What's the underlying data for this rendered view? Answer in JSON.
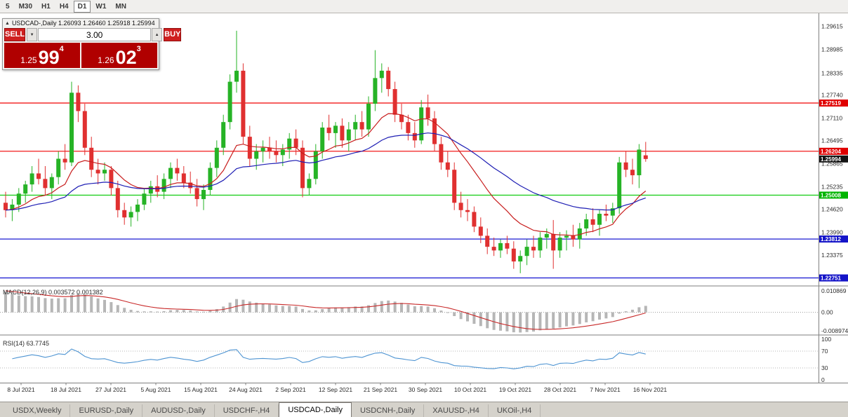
{
  "toolbar": {
    "timeframes": [
      "5",
      "M30",
      "H1",
      "H4",
      "D1",
      "W1",
      "MN"
    ],
    "active": "D1"
  },
  "trade_panel": {
    "collapse_icon": "▲",
    "quote_line": "USDCAD-,Daily 1.26093 1.26460 1.25918 1.25994",
    "sell_label": "SELL",
    "buy_label": "BUY",
    "volume": "3.00",
    "vol_down_icon": "▼",
    "vol_up_icon": "▲",
    "sell_price": {
      "figure": "1.25",
      "pips": "99",
      "pipette": "4"
    },
    "buy_price": {
      "figure": "1.26",
      "pips": "02",
      "pipette": "3"
    }
  },
  "colors": {
    "bull": "#26b326",
    "bear": "#e03030",
    "hline_red": "#f00000",
    "hline_green": "#00c800",
    "hline_blue": "#0000cd",
    "badge_red": "#e00000",
    "badge_green": "#00b400",
    "badge_blue": "#1414c8",
    "badge_current": "#141414",
    "ma_fast": "#c81e1e",
    "ma_slow": "#1e1eb4",
    "macd_hist": "#b6b6b6",
    "macd_signal": "#c82828",
    "rsi_line": "#4e94d2",
    "axis_text": "#2b2b2b",
    "separator": "#7f7f7f"
  },
  "chart_data": {
    "type": "candlestick",
    "title": "USDCAD-,Daily",
    "price_range": [
      1.2259,
      1.2985
    ],
    "current_price": 1.25994,
    "y_axis_labels": [
      1.29615,
      1.28985,
      1.28335,
      1.2774,
      1.2711,
      1.26495,
      1.25865,
      1.25235,
      1.2462,
      1.2399,
      1.23375
    ],
    "h_lines": [
      {
        "price": 1.27519,
        "color": "red"
      },
      {
        "price": 1.26204,
        "color": "red"
      },
      {
        "price": 1.25008,
        "color": "green"
      },
      {
        "price": 1.23812,
        "color": "blue"
      },
      {
        "price": 1.22751,
        "color": "blue"
      }
    ],
    "x_labels": [
      "8 Jul 2021",
      "18 Jul 2021",
      "27 Jul 2021",
      "5 Aug 2021",
      "15 Aug 2021",
      "24 Aug 2021",
      "2 Sep 2021",
      "12 Sep 2021",
      "21 Sep 2021",
      "30 Sep 2021",
      "10 Oct 2021",
      "19 Oct 2021",
      "28 Oct 2021",
      "7 Nov 2021",
      "16 Nov 2021"
    ],
    "moving_averages": [
      {
        "type": "ema",
        "period": 13,
        "color_key": "ma_fast"
      },
      {
        "type": "ema",
        "period": 34,
        "color_key": "ma_slow"
      }
    ],
    "indicators": {
      "macd": {
        "label": "MACD(12,26,9)",
        "values_text": "0.003572 0.001382",
        "params": [
          12,
          26,
          9
        ],
        "axis": [
          {
            "v": 0.010869,
            "label": "0.010869"
          },
          {
            "v": 0,
            "label": "0.00"
          },
          {
            "v": -0.008974,
            "label": "-0.008974"
          }
        ],
        "range": [
          -0.008974,
          0.010869
        ]
      },
      "rsi": {
        "label": "RSI(14)",
        "value_text": "63.7745",
        "period": 14,
        "axis": [
          100,
          70,
          30,
          0
        ],
        "levels": [
          70,
          30
        ]
      }
    },
    "ohlc": [
      [
        1.248,
        1.251,
        1.244,
        1.246
      ],
      [
        1.246,
        1.249,
        1.243,
        1.2475
      ],
      [
        1.2475,
        1.252,
        1.2455,
        1.2505
      ],
      [
        1.2505,
        1.254,
        1.248,
        1.253
      ],
      [
        1.253,
        1.258,
        1.251,
        1.256
      ],
      [
        1.256,
        1.26,
        1.253,
        1.2545
      ],
      [
        1.2545,
        1.258,
        1.25,
        1.252
      ],
      [
        1.252,
        1.256,
        1.249,
        1.255
      ],
      [
        1.255,
        1.262,
        1.253,
        1.26
      ],
      [
        1.26,
        1.264,
        1.257,
        1.259
      ],
      [
        1.259,
        1.281,
        1.258,
        1.278
      ],
      [
        1.278,
        1.28,
        1.27,
        1.273
      ],
      [
        1.273,
        1.275,
        1.261,
        1.263
      ],
      [
        1.263,
        1.266,
        1.255,
        1.257
      ],
      [
        1.257,
        1.26,
        1.253,
        1.256
      ],
      [
        1.256,
        1.259,
        1.254,
        1.257
      ],
      [
        1.257,
        1.258,
        1.25,
        1.252
      ],
      [
        1.252,
        1.254,
        1.244,
        1.246
      ],
      [
        1.246,
        1.248,
        1.242,
        1.244
      ],
      [
        1.244,
        1.247,
        1.2415,
        1.2455
      ],
      [
        1.2455,
        1.249,
        1.243,
        1.2475
      ],
      [
        1.2475,
        1.252,
        1.246,
        1.2505
      ],
      [
        1.2505,
        1.254,
        1.248,
        1.2525
      ],
      [
        1.2525,
        1.2555,
        1.2495,
        1.251
      ],
      [
        1.251,
        1.256,
        1.249,
        1.2545
      ],
      [
        1.2545,
        1.259,
        1.252,
        1.2575
      ],
      [
        1.2575,
        1.26,
        1.254,
        1.256
      ],
      [
        1.256,
        1.258,
        1.252,
        1.2535
      ],
      [
        1.2535,
        1.2565,
        1.2505,
        1.252
      ],
      [
        1.252,
        1.2545,
        1.247,
        1.249
      ],
      [
        1.249,
        1.253,
        1.246,
        1.2515
      ],
      [
        1.2515,
        1.259,
        1.25,
        1.2575
      ],
      [
        1.2575,
        1.265,
        1.255,
        1.263
      ],
      [
        1.263,
        1.272,
        1.261,
        1.27
      ],
      [
        1.27,
        1.283,
        1.268,
        1.281
      ],
      [
        1.281,
        1.2949,
        1.278,
        1.284
      ],
      [
        1.284,
        1.286,
        1.264,
        1.266
      ],
      [
        1.266,
        1.269,
        1.258,
        1.26
      ],
      [
        1.26,
        1.264,
        1.257,
        1.262
      ],
      [
        1.262,
        1.265,
        1.259,
        1.263
      ],
      [
        1.263,
        1.266,
        1.26,
        1.262
      ],
      [
        1.262,
        1.265,
        1.259,
        1.261
      ],
      [
        1.261,
        1.264,
        1.258,
        1.2625
      ],
      [
        1.2625,
        1.267,
        1.26,
        1.2655
      ],
      [
        1.2655,
        1.268,
        1.261,
        1.263
      ],
      [
        1.263,
        1.265,
        1.2495,
        1.252
      ],
      [
        1.252,
        1.256,
        1.25,
        1.2545
      ],
      [
        1.2545,
        1.264,
        1.253,
        1.262
      ],
      [
        1.262,
        1.27,
        1.26,
        1.2685
      ],
      [
        1.2685,
        1.272,
        1.265,
        1.267
      ],
      [
        1.267,
        1.27,
        1.263,
        1.269
      ],
      [
        1.269,
        1.271,
        1.263,
        1.265
      ],
      [
        1.265,
        1.27,
        1.262,
        1.268
      ],
      [
        1.268,
        1.272,
        1.265,
        1.27
      ],
      [
        1.27,
        1.273,
        1.266,
        1.268
      ],
      [
        1.268,
        1.277,
        1.266,
        1.275
      ],
      [
        1.275,
        1.2896,
        1.273,
        1.282
      ],
      [
        1.282,
        1.286,
        1.278,
        1.284
      ],
      [
        1.284,
        1.285,
        1.277,
        1.279
      ],
      [
        1.279,
        1.281,
        1.27,
        1.272
      ],
      [
        1.272,
        1.275,
        1.268,
        1.27
      ],
      [
        1.27,
        1.272,
        1.265,
        1.267
      ],
      [
        1.267,
        1.27,
        1.263,
        1.265
      ],
      [
        1.265,
        1.276,
        1.264,
        1.274
      ],
      [
        1.274,
        1.2775,
        1.269,
        1.271
      ],
      [
        1.271,
        1.273,
        1.262,
        1.264
      ],
      [
        1.264,
        1.266,
        1.257,
        1.259
      ],
      [
        1.259,
        1.262,
        1.255,
        1.257
      ],
      [
        1.257,
        1.259,
        1.246,
        1.248
      ],
      [
        1.248,
        1.251,
        1.244,
        1.246
      ],
      [
        1.246,
        1.249,
        1.243,
        1.2455
      ],
      [
        1.2455,
        1.247,
        1.24,
        1.2415
      ],
      [
        1.2415,
        1.244,
        1.237,
        1.239
      ],
      [
        1.239,
        1.241,
        1.234,
        1.236
      ],
      [
        1.236,
        1.2385,
        1.2335,
        1.235
      ],
      [
        1.235,
        1.238,
        1.233,
        1.237
      ],
      [
        1.237,
        1.239,
        1.234,
        1.2355
      ],
      [
        1.2355,
        1.2375,
        1.23,
        1.232
      ],
      [
        1.232,
        1.235,
        1.2288,
        1.2335
      ],
      [
        1.2335,
        1.238,
        1.231,
        1.236
      ],
      [
        1.236,
        1.239,
        1.233,
        1.235
      ],
      [
        1.235,
        1.24,
        1.233,
        1.2385
      ],
      [
        1.2385,
        1.241,
        1.2355,
        1.2395
      ],
      [
        1.2395,
        1.2433,
        1.23,
        1.235
      ],
      [
        1.235,
        1.24,
        1.233,
        1.2385
      ],
      [
        1.2385,
        1.2405,
        1.235,
        1.239
      ],
      [
        1.239,
        1.242,
        1.236,
        1.238
      ],
      [
        1.238,
        1.2425,
        1.2355,
        1.241
      ],
      [
        1.241,
        1.245,
        1.239,
        1.2435
      ],
      [
        1.2435,
        1.2465,
        1.24,
        1.242
      ],
      [
        1.242,
        1.246,
        1.239,
        1.245
      ],
      [
        1.245,
        1.2475,
        1.243,
        1.2445
      ],
      [
        1.2445,
        1.248,
        1.2425,
        1.2465
      ],
      [
        1.2465,
        1.2605,
        1.245,
        1.259
      ],
      [
        1.259,
        1.262,
        1.255,
        1.257
      ],
      [
        1.257,
        1.26,
        1.253,
        1.2555
      ],
      [
        1.2555,
        1.264,
        1.252,
        1.2625
      ],
      [
        1.26093,
        1.2646,
        1.25918,
        1.25994
      ]
    ]
  },
  "tabs": {
    "items": [
      "USDX,Weekly",
      "EURUSD-,Daily",
      "AUDUSD-,Daily",
      "USDCHF-,H4",
      "USDCAD-,Daily",
      "USDCNH-,Daily",
      "XAUUSD-,H4",
      "UKOil-,H4"
    ],
    "active": "USDCAD-,Daily"
  }
}
